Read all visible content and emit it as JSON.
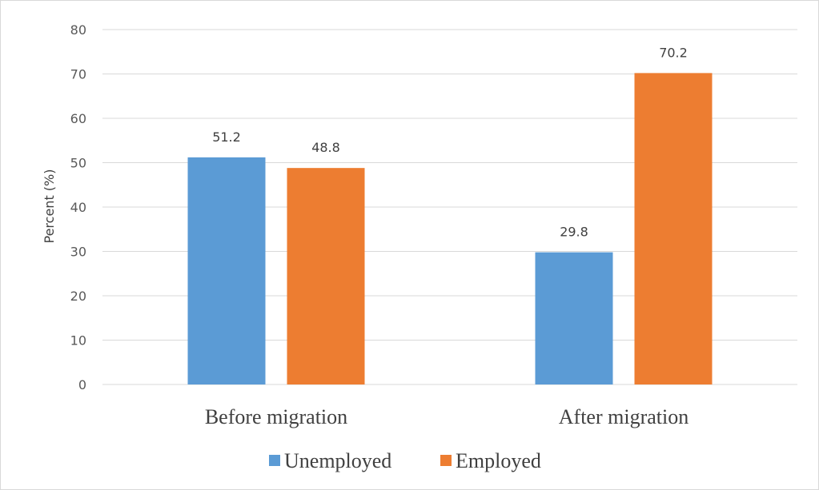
{
  "chart_data": {
    "type": "bar",
    "title": "",
    "xlabel": "",
    "ylabel": "Percent (%)",
    "categories": [
      "Before migration",
      "After migration"
    ],
    "series": [
      {
        "name": "Unemployed",
        "color": "#5b9bd5",
        "values": [
          51.2,
          29.8
        ]
      },
      {
        "name": "Employed",
        "color": "#ed7d31",
        "values": [
          48.8,
          70.2
        ]
      }
    ],
    "ylim": [
      0,
      80
    ],
    "yticks": [
      0,
      10,
      20,
      30,
      40,
      50,
      60,
      70,
      80
    ],
    "grid": true,
    "legend_position": "bottom",
    "data_labels": true
  }
}
